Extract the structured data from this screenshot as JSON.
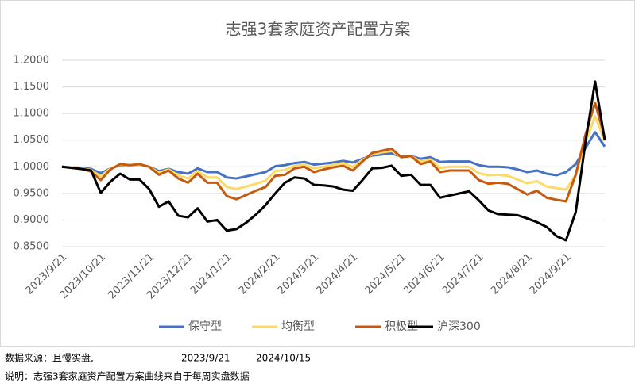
{
  "chart_data": {
    "type": "line",
    "title": "志强3套家庭资产配置方案",
    "categories": [
      "2023/9/21",
      null,
      null,
      null,
      "2023/10/21",
      null,
      null,
      null,
      null,
      "2023/11/21",
      null,
      null,
      null,
      "2023/12/21",
      null,
      null,
      null,
      "2024/1/21",
      null,
      null,
      null,
      null,
      "2024/2/21",
      null,
      null,
      null,
      "2024/3/21",
      null,
      null,
      null,
      "2024/4/21",
      null,
      null,
      null,
      null,
      "2024/5/21",
      null,
      null,
      null,
      "2024/6/21",
      null,
      null,
      null,
      "2024/7/21",
      null,
      null,
      null,
      null,
      "2024/8/21",
      null,
      null,
      null,
      "2024/9/21",
      null,
      null,
      null,
      null
    ],
    "series": [
      {
        "name": "保守型",
        "color": "#4472c4",
        "values": [
          1.0,
          0.999,
          0.998,
          0.996,
          0.988,
          0.997,
          1.003,
          1.002,
          1.004,
          1.0,
          0.992,
          0.996,
          0.99,
          0.987,
          0.997,
          0.99,
          0.99,
          0.98,
          0.978,
          0.982,
          0.986,
          0.99,
          1.001,
          1.003,
          1.007,
          1.009,
          1.004,
          1.006,
          1.008,
          1.011,
          1.008,
          1.015,
          1.021,
          1.023,
          1.025,
          1.019,
          1.02,
          1.015,
          1.018,
          1.009,
          1.01,
          1.01,
          1.01,
          1.003,
          1.0,
          1.0,
          0.999,
          0.995,
          0.99,
          0.993,
          0.987,
          0.984,
          0.99,
          1.005,
          1.035,
          1.065,
          1.038
        ]
      },
      {
        "name": "均衡型",
        "color": "#ffd966",
        "values": [
          1.0,
          0.999,
          0.997,
          0.994,
          0.982,
          0.997,
          1.004,
          1.002,
          1.004,
          1.0,
          0.989,
          0.995,
          0.984,
          0.978,
          0.992,
          0.98,
          0.98,
          0.962,
          0.958,
          0.963,
          0.968,
          0.974,
          0.992,
          0.994,
          1.002,
          1.004,
          0.997,
          1.0,
          1.004,
          1.007,
          1.0,
          1.013,
          1.023,
          1.027,
          1.03,
          1.018,
          1.02,
          1.01,
          1.014,
          0.998,
          1.0,
          1.0,
          1.0,
          0.988,
          0.984,
          0.985,
          0.983,
          0.976,
          0.969,
          0.973,
          0.963,
          0.96,
          0.957,
          0.985,
          1.045,
          1.095,
          1.048
        ]
      },
      {
        "name": "积极型",
        "color": "#c55a11",
        "values": [
          1.0,
          0.998,
          0.996,
          0.991,
          0.975,
          0.995,
          1.005,
          1.003,
          1.005,
          1.0,
          0.985,
          0.993,
          0.978,
          0.97,
          0.987,
          0.97,
          0.97,
          0.945,
          0.939,
          0.947,
          0.955,
          0.962,
          0.983,
          0.985,
          0.997,
          1.0,
          0.99,
          0.995,
          0.999,
          1.002,
          0.993,
          1.01,
          1.026,
          1.03,
          1.034,
          1.018,
          1.02,
          1.005,
          1.01,
          0.99,
          0.993,
          0.993,
          0.993,
          0.975,
          0.968,
          0.97,
          0.968,
          0.958,
          0.948,
          0.955,
          0.942,
          0.938,
          0.935,
          0.985,
          1.06,
          1.12,
          1.055
        ]
      },
      {
        "name": "沪深300",
        "color": "#000000",
        "values": [
          1.0,
          0.998,
          0.996,
          0.993,
          0.951,
          0.972,
          0.987,
          0.976,
          0.976,
          0.958,
          0.925,
          0.935,
          0.908,
          0.905,
          0.922,
          0.897,
          0.9,
          0.88,
          0.883,
          0.895,
          0.91,
          0.928,
          0.95,
          0.97,
          0.98,
          0.978,
          0.966,
          0.965,
          0.963,
          0.957,
          0.955,
          0.975,
          0.997,
          0.998,
          1.002,
          0.983,
          0.985,
          0.966,
          0.966,
          0.942,
          0.946,
          0.95,
          0.954,
          0.937,
          0.918,
          0.911,
          0.91,
          0.909,
          0.903,
          0.896,
          0.887,
          0.87,
          0.862,
          0.915,
          1.045,
          1.16,
          1.05
        ]
      }
    ],
    "ylim": [
      0.85,
      1.2
    ],
    "yticks": [
      {
        "value": 0.85,
        "label": "0.8500"
      },
      {
        "value": 0.9,
        "label": "0.9000"
      },
      {
        "value": 0.95,
        "label": "0.9500"
      },
      {
        "value": 1.0,
        "label": "1.0000"
      },
      {
        "value": 1.05,
        "label": "1.0500"
      },
      {
        "value": 1.1,
        "label": "1.1000"
      },
      {
        "value": 1.15,
        "label": "1.1500"
      },
      {
        "value": 1.2,
        "label": "1.2000"
      }
    ],
    "grid": true,
    "legend": "bottom",
    "footer": {
      "source": "数据来源：且慢实盘,",
      "start": "2023/9/21",
      "end": "2024/10/15",
      "note": "说明：志强3套家庭资产配置方案曲线来自于每周实盘数据"
    }
  }
}
